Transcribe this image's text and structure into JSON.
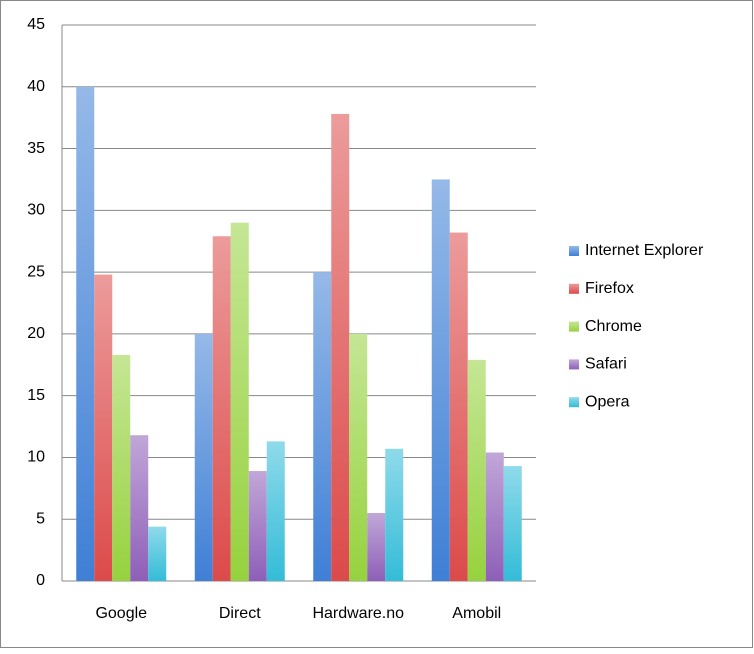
{
  "chart_data": {
    "type": "bar",
    "categories": [
      "Google",
      "Direct",
      "Hardware.no",
      "Amobil"
    ],
    "series": [
      {
        "name": "Internet Explorer",
        "color": "#3f7fd6",
        "values": [
          40,
          20,
          25,
          32.5
        ]
      },
      {
        "name": "Firefox",
        "color": "#dc4a4a",
        "values": [
          24.8,
          27.9,
          37.8,
          28.2
        ]
      },
      {
        "name": "Chrome",
        "color": "#96d23e",
        "values": [
          18.3,
          29,
          20,
          17.9
        ]
      },
      {
        "name": "Safari",
        "color": "#8e5fb8",
        "values": [
          11.8,
          8.9,
          5.5,
          10.4
        ]
      },
      {
        "name": "Opera",
        "color": "#34bcd8",
        "values": [
          4.4,
          11.3,
          10.7,
          9.3
        ]
      }
    ],
    "ylim": [
      0,
      45
    ],
    "yticks": [
      0,
      5,
      10,
      15,
      20,
      25,
      30,
      35,
      40,
      45
    ],
    "grid": true,
    "legend": "right"
  }
}
